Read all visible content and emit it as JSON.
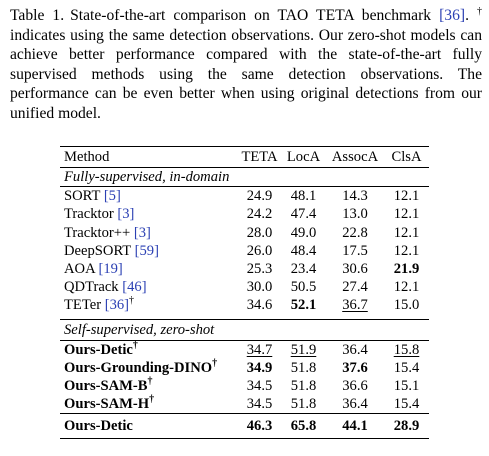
{
  "caption": {
    "label": "Table 1.",
    "text_1": "State-of-the-art comparison on TAO TETA benchmark ",
    "cite": "[36]",
    "text_2": ". ",
    "dagger": "†",
    "text_3": " indicates using the same detection observations. Our zero-shot models can achieve better performance compared with the state-of-the-art fully supervised methods using the same detection observations. The performance can be even better when using original detections from our unified model."
  },
  "table": {
    "headers": [
      "Method",
      "TETA",
      "LocA",
      "AssocA",
      "ClsA"
    ],
    "section_fully": "Fully-supervised, in-domain",
    "section_zero": "Self-supervised, zero-shot",
    "fully_rows": [
      {
        "name": "SORT",
        "cite": "[5]",
        "dagger": "",
        "values": [
          "24.9",
          "48.1",
          "14.3",
          "12.1"
        ],
        "bold": [
          false,
          false,
          false,
          false
        ],
        "underline": [
          false,
          false,
          false,
          false
        ]
      },
      {
        "name": "Tracktor",
        "cite": "[3]",
        "dagger": "",
        "values": [
          "24.2",
          "47.4",
          "13.0",
          "12.1"
        ],
        "bold": [
          false,
          false,
          false,
          false
        ],
        "underline": [
          false,
          false,
          false,
          false
        ]
      },
      {
        "name": "Tracktor++",
        "cite": "[3]",
        "dagger": "",
        "values": [
          "28.0",
          "49.0",
          "22.8",
          "12.1"
        ],
        "bold": [
          false,
          false,
          false,
          false
        ],
        "underline": [
          false,
          false,
          false,
          false
        ]
      },
      {
        "name": "DeepSORT",
        "cite": "[59]",
        "dagger": "",
        "values": [
          "26.0",
          "48.4",
          "17.5",
          "12.1"
        ],
        "bold": [
          false,
          false,
          false,
          false
        ],
        "underline": [
          false,
          false,
          false,
          false
        ]
      },
      {
        "name": "AOA",
        "cite": "[19]",
        "dagger": "",
        "values": [
          "25.3",
          "23.4",
          "30.6",
          "21.9"
        ],
        "bold": [
          false,
          false,
          false,
          true
        ],
        "underline": [
          false,
          false,
          false,
          false
        ]
      },
      {
        "name": "QDTrack",
        "cite": "[46]",
        "dagger": "",
        "values": [
          "30.0",
          "50.5",
          "27.4",
          "12.1"
        ],
        "bold": [
          false,
          false,
          false,
          false
        ],
        "underline": [
          false,
          false,
          false,
          false
        ]
      },
      {
        "name": "TETer",
        "cite": "[36]",
        "dagger": "†",
        "values": [
          "34.6",
          "52.1",
          "36.7",
          "15.0"
        ],
        "bold": [
          false,
          true,
          false,
          false
        ],
        "underline": [
          false,
          false,
          true,
          false
        ]
      }
    ],
    "zero_rows": [
      {
        "name": "Ours-Detic",
        "dagger": "†",
        "values": [
          "34.7",
          "51.9",
          "36.4",
          "15.8"
        ],
        "bold": [
          false,
          false,
          false,
          false
        ],
        "underline": [
          true,
          true,
          false,
          true
        ]
      },
      {
        "name": "Ours-Grounding-DINO",
        "dagger": "†",
        "values": [
          "34.9",
          "51.8",
          "37.6",
          "15.4"
        ],
        "bold": [
          true,
          false,
          true,
          false
        ],
        "underline": [
          false,
          false,
          false,
          false
        ]
      },
      {
        "name": "Ours-SAM-B",
        "dagger": "†",
        "values": [
          "34.5",
          "51.8",
          "36.6",
          "15.1"
        ],
        "bold": [
          false,
          false,
          false,
          false
        ],
        "underline": [
          false,
          false,
          false,
          false
        ]
      },
      {
        "name": "Ours-SAM-H",
        "dagger": "†",
        "values": [
          "34.5",
          "51.8",
          "36.4",
          "15.4"
        ],
        "bold": [
          false,
          false,
          false,
          false
        ],
        "underline": [
          false,
          false,
          false,
          false
        ]
      }
    ],
    "final_row": {
      "name": "Ours-Detic",
      "values": [
        "46.3",
        "65.8",
        "44.1",
        "28.9"
      ]
    }
  }
}
